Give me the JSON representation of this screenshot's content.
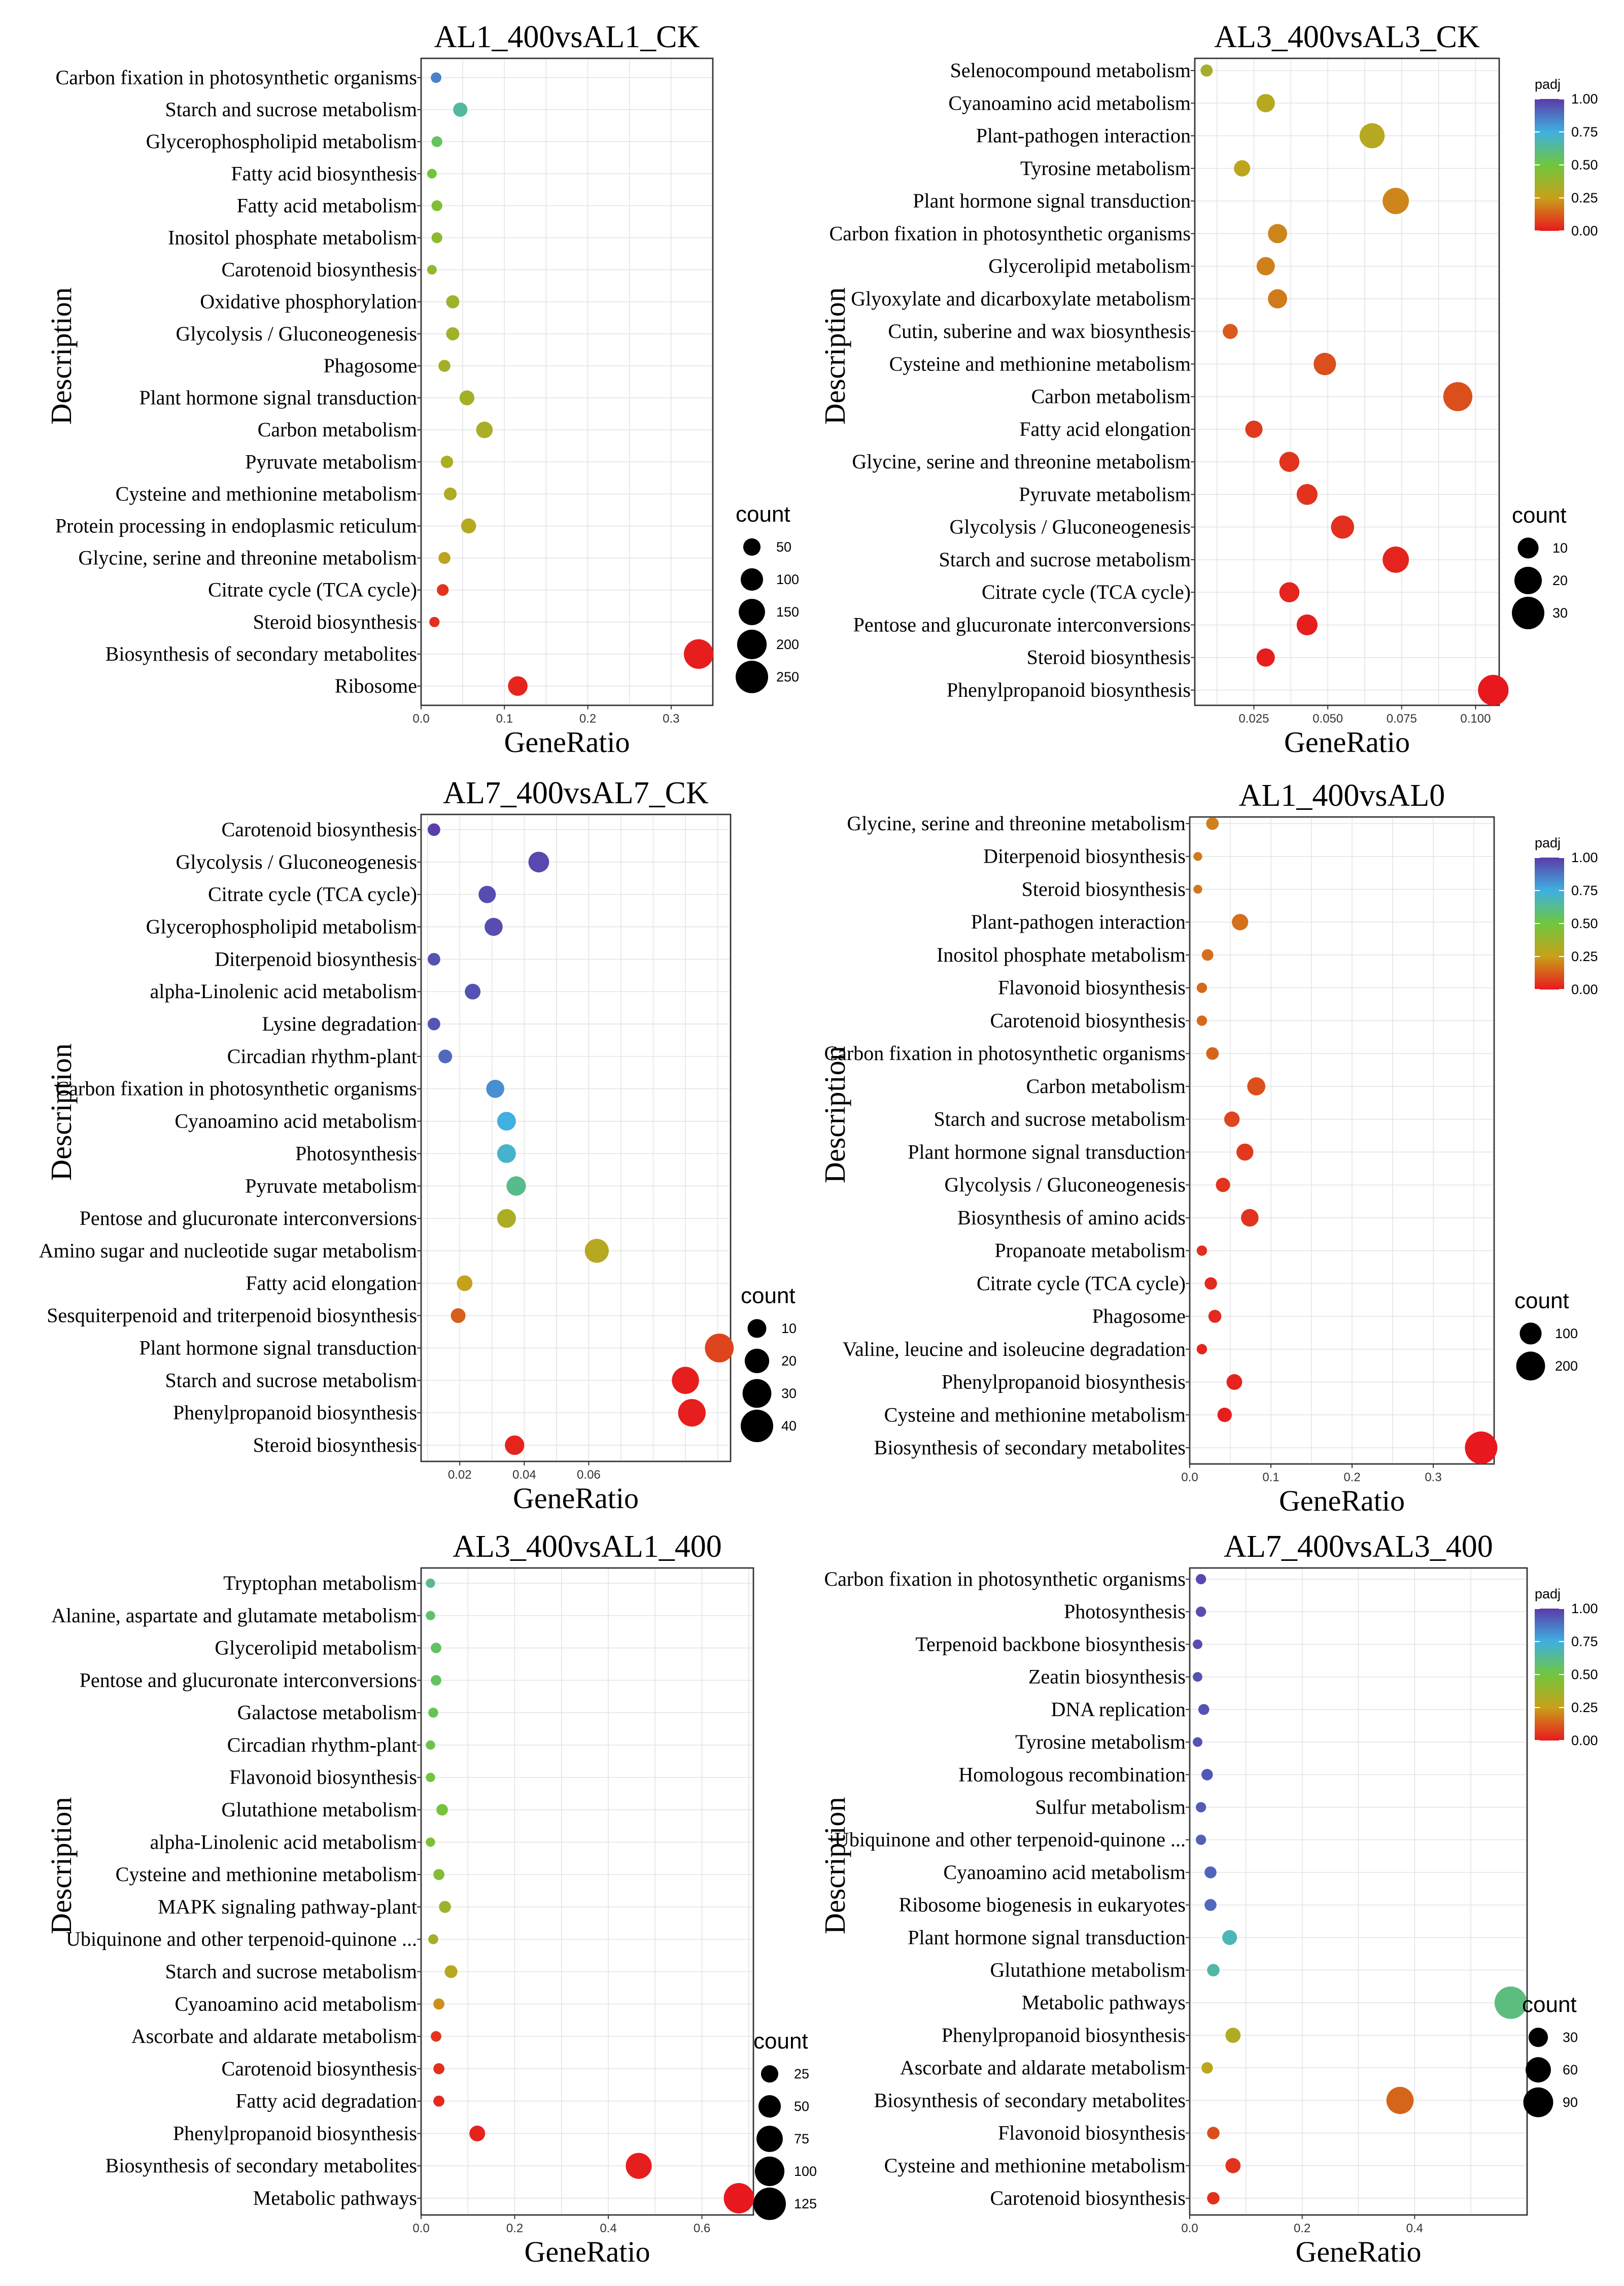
{
  "chart_data": [
    {
      "type": "scatter",
      "title": "AL1_400vsAL1_CK",
      "xlabel": "GeneRatio",
      "ylabel": "Description",
      "xlim": [
        0,
        0.35
      ],
      "xticks": [
        0,
        0.1,
        0.2,
        0.3
      ],
      "xtick_labels": [
        "0.0",
        "0.1",
        "0.2",
        "0.3"
      ],
      "categories": [
        "Carbon fixation in photosynthetic organisms",
        "Starch and sucrose metabolism",
        "Glycerophospholipid metabolism",
        "Fatty acid biosynthesis",
        "Fatty acid metabolism",
        "Inositol phosphate metabolism",
        "Carotenoid biosynthesis",
        "Oxidative phosphorylation",
        "Glycolysis / Gluconeogenesis",
        "Phagosome",
        "Plant hormone signal transduction",
        "Carbon metabolism",
        "Pyruvate metabolism",
        "Cysteine and methionine metabolism",
        "Protein processing in endoplasmic reticulum",
        "Glycine, serine and threonine metabolism",
        "Citrate cycle (TCA cycle)",
        "Steroid biosynthesis",
        "Biosynthesis of secondary metabolites",
        "Ribosome"
      ],
      "x": [
        0.018,
        0.047,
        0.019,
        0.013,
        0.019,
        0.019,
        0.013,
        0.038,
        0.038,
        0.028,
        0.055,
        0.076,
        0.031,
        0.035,
        0.057,
        0.028,
        0.026,
        0.016,
        0.333,
        0.116
      ],
      "padj": [
        0.85,
        0.65,
        0.55,
        0.5,
        0.45,
        0.42,
        0.4,
        0.38,
        0.36,
        0.35,
        0.35,
        0.34,
        0.33,
        0.32,
        0.3,
        0.28,
        0.05,
        0.04,
        0.01,
        0.02
      ],
      "count": [
        10,
        28,
        11,
        7,
        11,
        11,
        7,
        22,
        22,
        16,
        32,
        44,
        18,
        20,
        33,
        16,
        15,
        9,
        200,
        70
      ],
      "size_legend": {
        "title": "count",
        "values": [
          50,
          100,
          150,
          200,
          250
        ]
      }
    },
    {
      "type": "scatter",
      "title": "AL3_400vsAL3_CK",
      "xlabel": "GeneRatio",
      "ylabel": "Description",
      "xlim": [
        0.005,
        0.108
      ],
      "xticks": [
        0.025,
        0.05,
        0.075,
        0.1
      ],
      "xtick_labels": [
        "0.025",
        "0.050",
        "0.075",
        "0.100"
      ],
      "categories": [
        "Selenocompound metabolism",
        "Cyanoamino acid metabolism",
        "Plant-pathogen interaction",
        "Tyrosine metabolism",
        "Plant hormone signal transduction",
        "Carbon fixation in photosynthetic organisms",
        "Glycerolipid metabolism",
        "Glyoxylate and dicarboxylate metabolism",
        "Cutin, suberine and wax biosynthesis",
        "Cysteine and methionine metabolism",
        "Carbon metabolism",
        "Fatty acid elongation",
        "Glycine, serine and threonine metabolism",
        "Pyruvate metabolism",
        "Glycolysis / Gluconeogenesis",
        "Starch and sucrose metabolism",
        "Citrate cycle (TCA cycle)",
        "Pentose and glucuronate interconversions",
        "Steroid biosynthesis",
        "Phenylpropanoid biosynthesis"
      ],
      "x": [
        0.009,
        0.029,
        0.065,
        0.021,
        0.073,
        0.033,
        0.029,
        0.033,
        0.017,
        0.049,
        0.094,
        0.025,
        0.037,
        0.043,
        0.055,
        0.073,
        0.037,
        0.043,
        0.029,
        0.106
      ],
      "padj": [
        0.35,
        0.3,
        0.3,
        0.28,
        0.2,
        0.2,
        0.19,
        0.18,
        0.12,
        0.1,
        0.1,
        0.06,
        0.05,
        0.05,
        0.04,
        0.02,
        0.02,
        0.01,
        0.01,
        0.0
      ],
      "count": [
        2,
        7,
        16,
        5,
        18,
        8,
        7,
        8,
        4,
        12,
        23,
        6,
        9,
        10,
        13,
        18,
        9,
        10,
        7,
        26
      ],
      "size_legend": {
        "title": "count",
        "values": [
          10,
          20,
          30
        ]
      },
      "color_legend": {
        "title": "padj",
        "values": [
          "1.00",
          "0.75",
          "0.50",
          "0.25",
          "0.00"
        ]
      }
    },
    {
      "type": "scatter",
      "title": "AL7_400vsAL7_CK",
      "xlabel": "GeneRatio",
      "ylabel": "Description",
      "xlim": [
        0.008,
        0.104
      ],
      "xticks": [
        0.02,
        0.04,
        0.06
      ],
      "xtick_labels": [
        "0.02",
        "0.04",
        "0.06"
      ],
      "categories": [
        "Carotenoid biosynthesis",
        "Glycolysis / Gluconeogenesis",
        "Citrate cycle (TCA cycle)",
        "Glycerophospholipid metabolism",
        "Diterpenoid biosynthesis",
        "alpha-Linolenic acid metabolism",
        "Lysine degradation",
        "Circadian rhythm-plant",
        "Carbon fixation in photosynthetic organisms",
        "Cyanoamino acid metabolism",
        "Photosynthesis",
        "Pyruvate metabolism",
        "Pentose and glucuronate interconversions",
        "Amino sugar and nucleotide sugar metabolism",
        "Fatty acid elongation",
        "Sesquiterpenoid and triterpenoid biosynthesis",
        "Plant hormone signal transduction",
        "Starch and sucrose metabolism",
        "Phenylpropanoid biosynthesis",
        "Steroid biosynthesis"
      ],
      "x": [
        0.012,
        0.0445,
        0.0285,
        0.0305,
        0.012,
        0.024,
        0.012,
        0.0155,
        0.031,
        0.0345,
        0.0345,
        0.0375,
        0.0345,
        0.0625,
        0.0215,
        0.0195,
        0.1005,
        0.09,
        0.092,
        0.037
      ],
      "padj": [
        0.99,
        0.97,
        0.96,
        0.96,
        0.95,
        0.95,
        0.94,
        0.9,
        0.82,
        0.75,
        0.72,
        0.62,
        0.33,
        0.3,
        0.26,
        0.13,
        0.08,
        0.01,
        0.01,
        0.02
      ],
      "count": [
        3,
        13,
        8,
        9,
        3,
        6,
        3,
        4,
        9,
        10,
        10,
        11,
        10,
        19,
        6,
        5,
        30,
        26,
        27,
        11
      ],
      "size_legend": {
        "title": "count",
        "values": [
          10,
          20,
          30,
          40
        ]
      }
    },
    {
      "type": "scatter",
      "title": "AL1_400vsAL0",
      "xlabel": "GeneRatio",
      "ylabel": "Description",
      "xlim": [
        0,
        0.375
      ],
      "xticks": [
        0,
        0.1,
        0.2,
        0.3
      ],
      "xtick_labels": [
        "0.0",
        "0.1",
        "0.2",
        "0.3"
      ],
      "categories": [
        "Glycine, serine and threonine metabolism",
        "Diterpenoid biosynthesis",
        "Steroid biosynthesis",
        "Plant-pathogen interaction",
        "Inositol phosphate metabolism",
        "Flavonoid biosynthesis",
        "Carotenoid biosynthesis",
        "Carbon fixation in photosynthetic organisms",
        "Carbon metabolism",
        "Starch and sucrose metabolism",
        "Plant hormone signal transduction",
        "Glycolysis / Gluconeogenesis",
        "Biosynthesis of amino acids",
        "Propanoate metabolism",
        "Citrate cycle (TCA cycle)",
        "Phagosome",
        "Valine, leucine and isoleucine degradation",
        "Phenylpropanoid biosynthesis",
        "Cysteine and methionine metabolism",
        "Biosynthesis of secondary metabolites"
      ],
      "x": [
        0.028,
        0.01,
        0.01,
        0.062,
        0.022,
        0.015,
        0.015,
        0.028,
        0.082,
        0.052,
        0.068,
        0.041,
        0.074,
        0.015,
        0.026,
        0.031,
        0.015,
        0.055,
        0.043,
        0.359
      ],
      "padj": [
        0.19,
        0.18,
        0.17,
        0.16,
        0.16,
        0.15,
        0.15,
        0.14,
        0.1,
        0.08,
        0.06,
        0.05,
        0.05,
        0.04,
        0.03,
        0.03,
        0.02,
        0.02,
        0.01,
        0.0
      ],
      "count": [
        20,
        5,
        5,
        45,
        15,
        10,
        10,
        20,
        60,
        38,
        50,
        30,
        55,
        10,
        19,
        22,
        10,
        40,
        31,
        265
      ],
      "size_legend": {
        "title": "count",
        "values": [
          100,
          200
        ]
      },
      "color_legend": {
        "title": "padj",
        "values": [
          "1.00",
          "0.75",
          "0.50",
          "0.25",
          "0.00"
        ]
      }
    },
    {
      "type": "scatter",
      "title": "AL3_400vsAL1_400",
      "xlabel": "GeneRatio",
      "ylabel": "Description",
      "xlim": [
        0,
        0.71
      ],
      "xticks": [
        0,
        0.2,
        0.4,
        0.6
      ],
      "xtick_labels": [
        "0.0",
        "0.2",
        "0.4",
        "0.6"
      ],
      "categories": [
        "Tryptophan metabolism",
        "Alanine, aspartate and glutamate metabolism",
        "Glycerolipid metabolism",
        "Pentose and glucuronate interconversions",
        "Galactose metabolism",
        "Circadian rhythm-plant",
        "Flavonoid biosynthesis",
        "Glutathione metabolism",
        "alpha-Linolenic acid metabolism",
        "Cysteine and methionine metabolism",
        "MAPK signaling pathway-plant",
        "Ubiquinone and other terpenoid-quinone ...",
        "Starch and sucrose metabolism",
        "Cyanoamino acid metabolism",
        "Ascorbate and aldarate metabolism",
        "Carotenoid biosynthesis",
        "Fatty acid degradation",
        "Phenylpropanoid biosynthesis",
        "Biosynthesis of secondary metabolites",
        "Metabolic pathways"
      ],
      "x": [
        0.02,
        0.02,
        0.032,
        0.032,
        0.026,
        0.02,
        0.02,
        0.045,
        0.02,
        0.038,
        0.051,
        0.026,
        0.064,
        0.038,
        0.032,
        0.038,
        0.038,
        0.12,
        0.465,
        0.679
      ],
      "padj": [
        0.62,
        0.58,
        0.56,
        0.55,
        0.53,
        0.52,
        0.5,
        0.48,
        0.46,
        0.44,
        0.38,
        0.35,
        0.3,
        0.22,
        0.05,
        0.04,
        0.03,
        0.02,
        0.01,
        0.0
      ],
      "count": [
        3,
        3,
        5,
        5,
        4,
        3,
        3,
        7,
        3,
        6,
        8,
        4,
        10,
        6,
        5,
        6,
        6,
        19,
        73,
        106
      ],
      "size_legend": {
        "title": "count",
        "values": [
          25,
          50,
          75,
          100,
          125
        ]
      }
    },
    {
      "type": "scatter",
      "title": "AL7_400vsAL3_400",
      "xlabel": "GeneRatio",
      "ylabel": "Description",
      "xlim": [
        0,
        0.6
      ],
      "xticks": [
        0,
        0.2,
        0.4
      ],
      "xtick_labels": [
        "0.0",
        "0.2",
        "0.4"
      ],
      "categories": [
        "Carbon fixation in photosynthetic organisms",
        "Photosynthesis",
        "Terpenoid backbone biosynthesis",
        "Zeatin biosynthesis",
        "DNA replication",
        "Tyrosine metabolism",
        "Homologous recombination",
        "Sulfur metabolism",
        "Ubiquinone and other terpenoid-quinone ...",
        "Cyanoamino acid metabolism",
        "Ribosome biogenesis in eukaryotes",
        "Plant hormone signal transduction",
        "Glutathione metabolism",
        "Metabolic pathways",
        "Phenylpropanoid biosynthesis",
        "Ascorbate and aldarate metabolism",
        "Biosynthesis of secondary metabolites",
        "Flavonoid biosynthesis",
        "Cysteine and methionine metabolism",
        "Carotenoid biosynthesis"
      ],
      "x": [
        0.02,
        0.02,
        0.014,
        0.014,
        0.025,
        0.014,
        0.031,
        0.02,
        0.02,
        0.037,
        0.037,
        0.071,
        0.042,
        0.571,
        0.077,
        0.031,
        0.374,
        0.042,
        0.077,
        0.042
      ],
      "padj": [
        0.97,
        0.96,
        0.96,
        0.95,
        0.95,
        0.95,
        0.94,
        0.93,
        0.92,
        0.91,
        0.9,
        0.68,
        0.66,
        0.6,
        0.32,
        0.28,
        0.14,
        0.1,
        0.05,
        0.04
      ],
      "count": [
        4,
        4,
        3,
        3,
        5,
        3,
        6,
        4,
        4,
        7,
        7,
        14,
        8,
        110,
        15,
        6,
        72,
        8,
        15,
        8
      ],
      "size_legend": {
        "title": "count",
        "values": [
          30,
          60,
          90
        ]
      },
      "color_legend": {
        "title": "padj",
        "values": [
          "1.00",
          "0.75",
          "0.50",
          "0.25",
          "0.00"
        ]
      }
    }
  ]
}
